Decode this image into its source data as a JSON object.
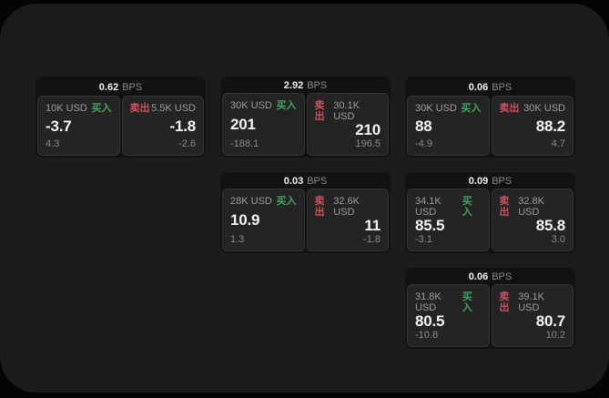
{
  "window": {
    "background": "#1c1c1c",
    "outer_background": "#050505"
  },
  "colors": {
    "buy_green": "#3fa463",
    "sell_red": "#d14f5e",
    "text_primary": "#f5f5f5",
    "text_secondary": "#9c9c9c",
    "card_background": "#121212",
    "panel_background": "#242424"
  },
  "labels": {
    "buy": "买入",
    "sell": "卖出",
    "bps_unit": "BPS"
  },
  "cards": [
    {
      "bps_value": "0.62",
      "buy": {
        "amount": "10K USD",
        "price": "-3.7",
        "delta": "4.3"
      },
      "sell": {
        "amount": "5.5K USD",
        "price": "-1.8",
        "delta": "-2.6"
      }
    },
    {
      "bps_value": "2.92",
      "buy": {
        "amount": "30K USD",
        "price": "201",
        "delta": "-188.1"
      },
      "sell": {
        "amount": "30.1K USD",
        "price": "210",
        "delta": "196.5"
      }
    },
    {
      "bps_value": "0.06",
      "buy": {
        "amount": "30K USD",
        "price": "88",
        "delta": "-4.9"
      },
      "sell": {
        "amount": "30K USD",
        "price": "88.2",
        "delta": "4.7"
      }
    },
    {
      "bps_value": "0.03",
      "buy": {
        "amount": "28K USD",
        "price": "10.9",
        "delta": "1.3"
      },
      "sell": {
        "amount": "32.6K USD",
        "price": "11",
        "delta": "-1.8"
      }
    },
    {
      "bps_value": "0.09",
      "buy": {
        "amount": "34.1K USD",
        "price": "85.5",
        "delta": "-3.1"
      },
      "sell": {
        "amount": "32.8K USD",
        "price": "85.8",
        "delta": "3.0"
      }
    },
    {
      "bps_value": "0.06",
      "buy": {
        "amount": "31.8K USD",
        "price": "80.5",
        "delta": "-10.8"
      },
      "sell": {
        "amount": "39.1K USD",
        "price": "80.7",
        "delta": "10.2"
      }
    }
  ]
}
